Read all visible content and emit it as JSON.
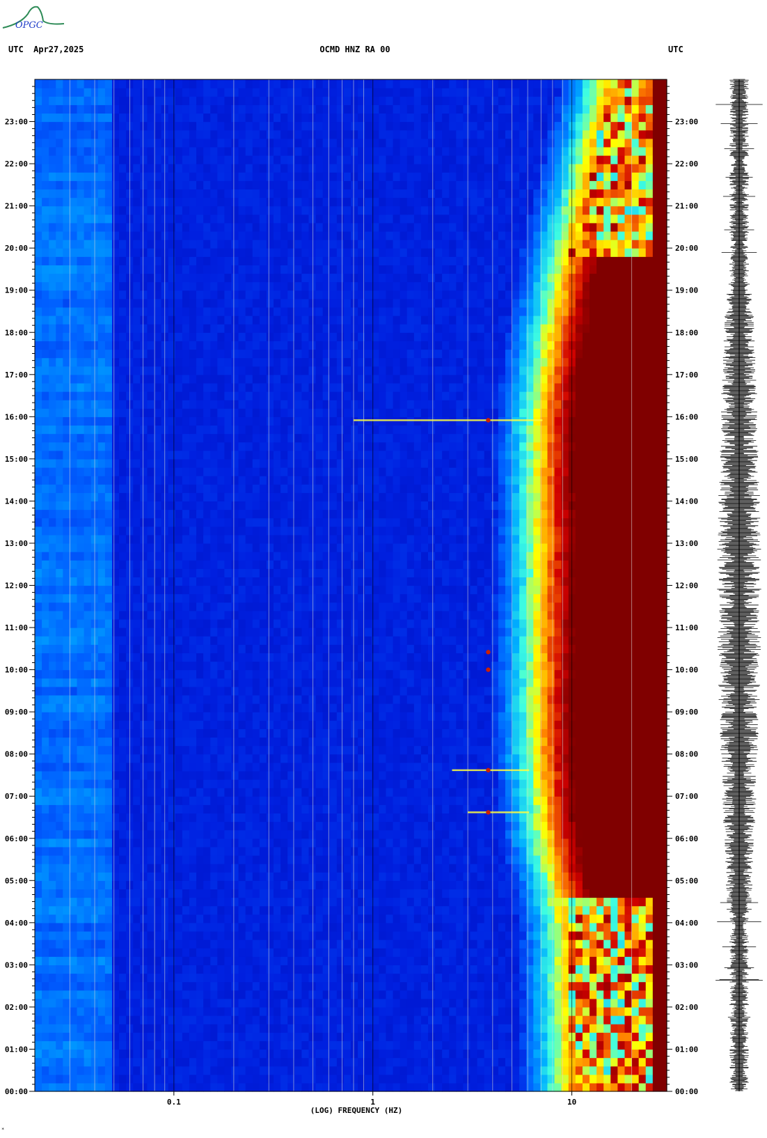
{
  "header": {
    "left_label": "UTC  Apr27,2025",
    "center_label": "OCMD HNZ RA 00",
    "right_label": "UTC"
  },
  "logo": {
    "text": "OPGC"
  },
  "footer_mark": "*",
  "chart_data": {
    "type": "heatmap",
    "title": "OCMD HNZ RA 00",
    "date": "Apr27,2025",
    "xlabel": "(LOG) FREQUENCY (HZ)",
    "x_scale": "log",
    "xlim": [
      0.02,
      30
    ],
    "x_ticks": [
      0.1,
      1,
      10
    ],
    "x_tick_labels": [
      "0.1",
      "1",
      "10"
    ],
    "ylabel": "UTC",
    "ylim_hours": [
      0,
      24
    ],
    "y_tick_labels": [
      "00:00",
      "01:00",
      "02:00",
      "03:00",
      "04:00",
      "05:00",
      "06:00",
      "07:00",
      "08:00",
      "09:00",
      "10:00",
      "11:00",
      "12:00",
      "13:00",
      "14:00",
      "15:00",
      "16:00",
      "17:00",
      "18:00",
      "19:00",
      "20:00",
      "21:00",
      "22:00",
      "23:00"
    ],
    "colormap": [
      "#0000a0",
      "#0020e0",
      "#0060ff",
      "#00b0ff",
      "#40ffe0",
      "#ffff00",
      "#ff8000",
      "#d00000",
      "#800000"
    ],
    "saturation_onset_hz": [
      {
        "hour": 0,
        "hz": 9.5
      },
      {
        "hour": 4,
        "hz": 9.2
      },
      {
        "hour": 6,
        "hz": 7.5
      },
      {
        "hour": 8,
        "hz": 6.8
      },
      {
        "hour": 12,
        "hz": 7.0
      },
      {
        "hour": 16,
        "hz": 7.0
      },
      {
        "hour": 18,
        "hz": 8.0
      },
      {
        "hour": 20,
        "hz": 9.5
      },
      {
        "hour": 22,
        "hz": 12
      },
      {
        "hour": 24,
        "hz": 15
      }
    ],
    "night_bands_hours": [
      [
        0,
        4.5
      ],
      [
        19.8,
        24
      ]
    ],
    "events": [
      {
        "time": "15:55",
        "hz_from": 0.8,
        "hz_to": 7
      },
      {
        "time": "10:25",
        "hz_from": 3.8,
        "hz_to": 3.8
      },
      {
        "time": "10:00",
        "hz_from": 3.8,
        "hz_to": 3.8
      },
      {
        "time": "07:37",
        "hz_from": 2.5,
        "hz_to": 6
      },
      {
        "time": "06:37",
        "hz_from": 3.0,
        "hz_to": 6
      }
    ],
    "reference_lines_hz": [
      0.03,
      0.04,
      0.05,
      0.06,
      0.07,
      0.08,
      0.09,
      0.1,
      0.2,
      0.3,
      0.4,
      0.5,
      0.6,
      0.7,
      0.8,
      0.9,
      1,
      2,
      3,
      4,
      5,
      6,
      7,
      8,
      9,
      10,
      20
    ],
    "seismogram_label": "HNZ trace"
  }
}
